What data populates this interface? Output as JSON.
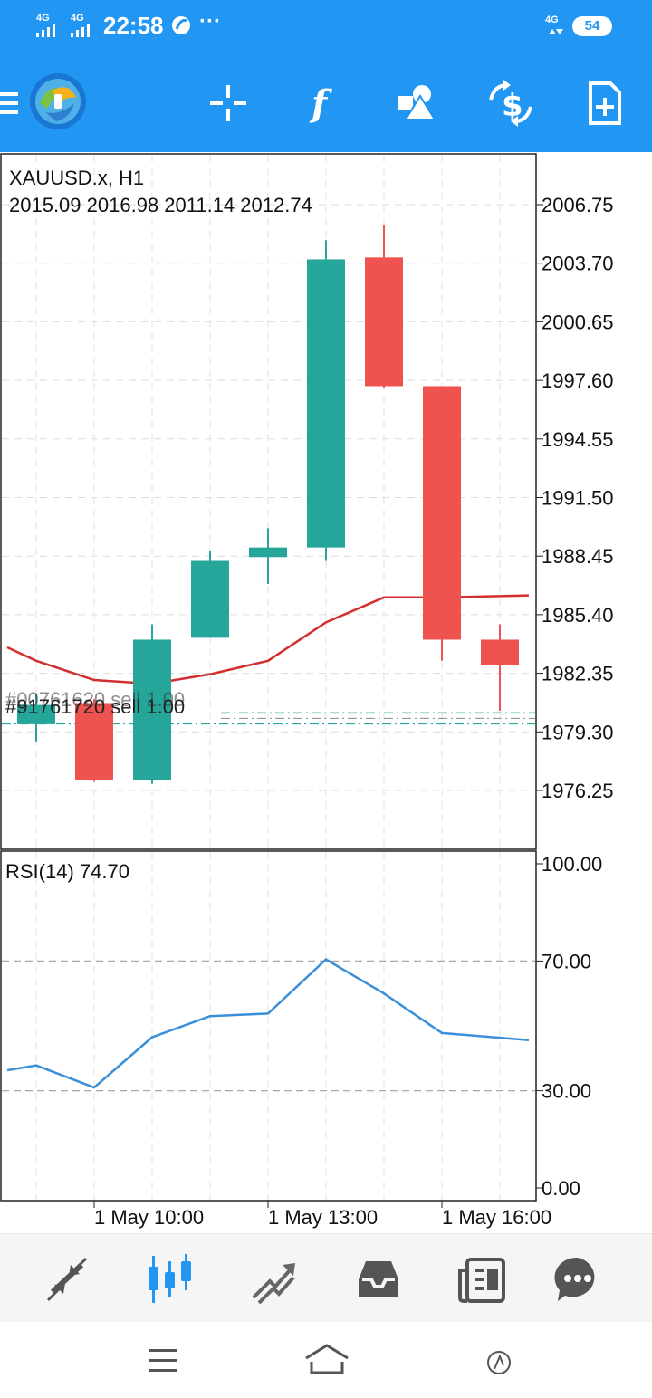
{
  "status_bar": {
    "time": "22:58",
    "signal_1": "4G",
    "signal_2": "4G",
    "network": "4G",
    "battery": "54",
    "more": "···"
  },
  "toolbar": {
    "icons": [
      "menu-icon",
      "metatrader-logo",
      "crosshair-icon",
      "indicators-icon",
      "objects-icon",
      "symbols-icon",
      "new-order-icon"
    ]
  },
  "chart": {
    "symbol_timeframe": "XAUUSD.x, H1",
    "ohlc": "2015.09 2016.98 2011.14 2012.74",
    "order_line_label": "#91761720 sell 1.00",
    "order_line_label_ghost": "#00761620 sell 1.00",
    "price_axis": [
      "2006.75",
      "2003.70",
      "2000.65",
      "1997.60",
      "1994.55",
      "1991.50",
      "1988.45",
      "1985.40",
      "1982.35",
      "1979.30",
      "1976.25"
    ],
    "time_axis": [
      "1 May 10:00",
      "1 May 13:00",
      "1 May 16:00"
    ],
    "colors": {
      "bull": "#26a69a",
      "bear": "#ef5350",
      "ma": "#d32f2f",
      "rsi": "#3a8fd9",
      "accent": "#2196f3"
    }
  },
  "rsi": {
    "label": "RSI(14) 74.70",
    "axis": [
      "100.00",
      "70.00",
      "30.00",
      "0.00"
    ]
  },
  "chart_data": [
    {
      "type": "candlestick",
      "title": "XAUUSD.x, H1",
      "x": [
        "1 May 09:00",
        "1 May 10:00",
        "1 May 11:00",
        "1 May 12:00",
        "1 May 13:00",
        "1 May 14:00",
        "1 May 15:00",
        "1 May 16:00",
        "1 May 17:00"
      ],
      "open": [
        1979.7,
        1980.8,
        1976.8,
        1984.2,
        1988.4,
        1988.9,
        2004.0,
        1997.3,
        1984.1
      ],
      "high": [
        1981.3,
        1981.0,
        1984.9,
        1988.7,
        1989.9,
        2004.9,
        2005.7,
        1997.3,
        1984.9
      ],
      "low": [
        1978.8,
        1976.7,
        1976.6,
        1984.2,
        1987.0,
        1988.2,
        1997.2,
        1983.0,
        1980.4
      ],
      "close": [
        1980.7,
        1976.8,
        1984.1,
        1988.2,
        1988.9,
        2003.9,
        1997.3,
        1984.1,
        1982.8
      ],
      "ma": [
        1983.7,
        1983.0,
        1982.0,
        1981.8,
        1982.3,
        1983.0,
        1985.0,
        1986.3,
        1986.3,
        1986.4
      ],
      "ma_x": [
        "1 May 08:30",
        "1 May 09:00",
        "1 May 10:00",
        "1 May 11:00",
        "1 May 12:00",
        "1 May 13:00",
        "1 May 14:00",
        "1 May 15:00",
        "1 May 16:00",
        "1 May 17:30"
      ],
      "order_price": 1980.1,
      "ylim": [
        1974.0,
        2009.0
      ],
      "yticks": [
        2006.75,
        2003.7,
        2000.65,
        1997.6,
        1994.55,
        1991.5,
        1988.45,
        1985.4,
        1982.35,
        1979.3,
        1976.25
      ]
    },
    {
      "type": "line",
      "title": "RSI(14) 74.70",
      "x": [
        "1 May 08:30",
        "1 May 09:00",
        "1 May 10:00",
        "1 May 11:00",
        "1 May 12:00",
        "1 May 13:00",
        "1 May 14:00",
        "1 May 15:00",
        "1 May 16:00",
        "1 May 17:30"
      ],
      "values": [
        36.3,
        37.8,
        31.0,
        46.5,
        53.0,
        53.8,
        70.5,
        60.0,
        47.8,
        45.6
      ],
      "ylim": [
        0,
        100
      ],
      "levels": [
        70,
        30
      ]
    }
  ]
}
